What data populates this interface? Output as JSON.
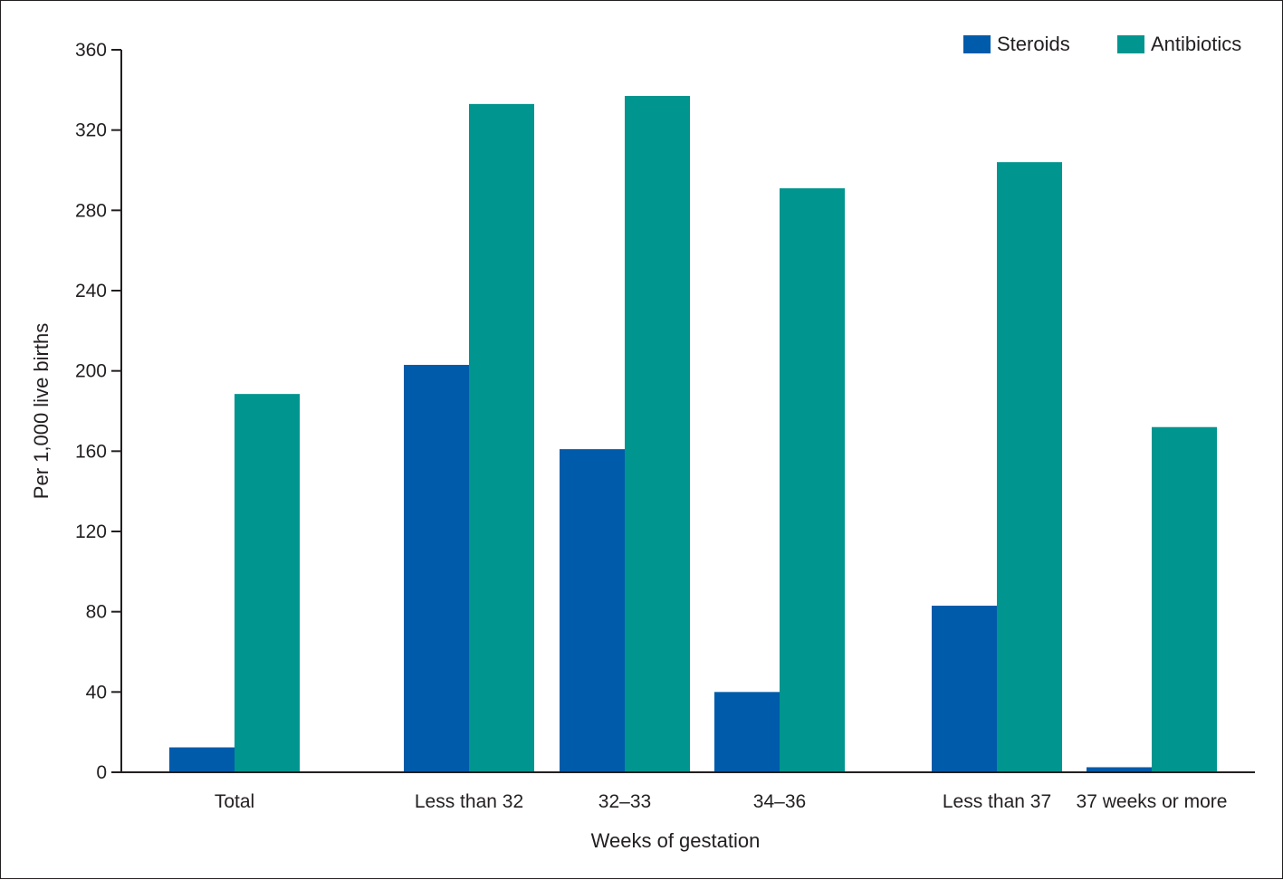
{
  "chart_data": {
    "type": "bar",
    "title": "",
    "xlabel": "Weeks of gestation",
    "ylabel": "Per 1,000 live births",
    "ylim": [
      0,
      360
    ],
    "yticks": [
      0,
      40,
      80,
      120,
      160,
      200,
      240,
      280,
      320,
      360
    ],
    "grid": false,
    "legend_position": "top-right",
    "categories": [
      "Total",
      "Less than 32",
      "32–33",
      "34–36",
      "Less than 37",
      "37 weeks or more"
    ],
    "series": [
      {
        "name": "Steroids",
        "color": "#005baa",
        "values": [
          12.4,
          203,
          161,
          40,
          83,
          2.5
        ]
      },
      {
        "name": "Antibiotics",
        "color": "#00958f",
        "values": [
          188.5,
          333,
          337,
          291,
          304,
          172
        ]
      }
    ]
  }
}
